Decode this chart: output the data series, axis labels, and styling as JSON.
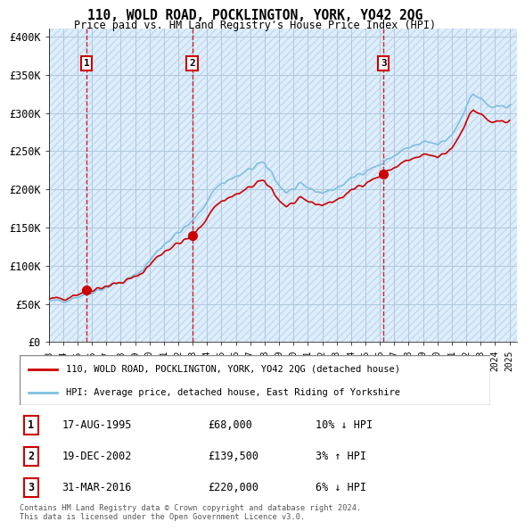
{
  "title": "110, WOLD ROAD, POCKLINGTON, YORK, YO42 2QG",
  "subtitle": "Price paid vs. HM Land Registry's House Price Index (HPI)",
  "ylabel_ticks": [
    "£0",
    "£50K",
    "£100K",
    "£150K",
    "£200K",
    "£250K",
    "£300K",
    "£350K",
    "£400K"
  ],
  "ytick_values": [
    0,
    50000,
    100000,
    150000,
    200000,
    250000,
    300000,
    350000,
    400000
  ],
  "ylim": [
    0,
    410000
  ],
  "xlim_start": 1993.0,
  "xlim_end": 2025.5,
  "sale_dates": [
    1995.625,
    2002.96,
    2016.25
  ],
  "sale_prices": [
    68000,
    139500,
    220000
  ],
  "sale_labels": [
    "1",
    "2",
    "3"
  ],
  "hpi_line_color": "#7fbfdf",
  "sale_line_color": "#cc0000",
  "sale_dot_color": "#cc0000",
  "bg_color": "#ddeeff",
  "hatch_color": "#c8d8e8",
  "grid_color": "#b0c8dc",
  "legend_sale_label": "110, WOLD ROAD, POCKLINGTON, YORK, YO42 2QG (detached house)",
  "legend_hpi_label": "HPI: Average price, detached house, East Riding of Yorkshire",
  "table_rows": [
    {
      "num": "1",
      "date": "17-AUG-1995",
      "price": "£68,000",
      "hpi": "10% ↓ HPI"
    },
    {
      "num": "2",
      "date": "19-DEC-2002",
      "price": "£139,500",
      "hpi": "3% ↑ HPI"
    },
    {
      "num": "3",
      "date": "31-MAR-2016",
      "price": "£220,000",
      "hpi": "6% ↓ HPI"
    }
  ],
  "footnote": "Contains HM Land Registry data © Crown copyright and database right 2024.\nThis data is licensed under the Open Government Licence v3.0.",
  "xtick_years": [
    1993,
    1994,
    1995,
    1996,
    1997,
    1998,
    1999,
    2000,
    2001,
    2002,
    2003,
    2004,
    2005,
    2006,
    2007,
    2008,
    2009,
    2010,
    2011,
    2012,
    2013,
    2014,
    2015,
    2016,
    2017,
    2018,
    2019,
    2020,
    2021,
    2022,
    2023,
    2024,
    2025
  ]
}
